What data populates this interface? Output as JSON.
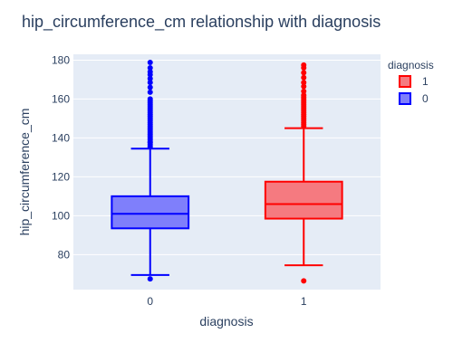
{
  "chart_data": {
    "type": "box",
    "title": "hip_circumference_cm relationship with diagnosis",
    "xlabel": "diagnosis",
    "ylabel": "hip_circumference_cm",
    "categories": [
      "0",
      "1"
    ],
    "ylim": [
      62,
      183
    ],
    "yticks": [
      80,
      100,
      120,
      140,
      160,
      180
    ],
    "grid": true,
    "legend": {
      "title": "diagnosis",
      "placement": "top-right",
      "entries": [
        "1",
        "0"
      ]
    },
    "series": [
      {
        "name": "0",
        "category": "0",
        "color": "#0000ff",
        "fill": "#7f7ffb",
        "min": 69.5,
        "q1": 93.5,
        "median": 101,
        "q3": 110,
        "max": 134.5,
        "outliers": [
          67.5,
          135.5,
          136.5,
          137.5,
          138,
          139,
          140,
          141,
          142,
          143,
          144,
          145,
          146,
          147,
          148,
          149,
          150,
          151,
          152,
          153,
          154,
          155,
          156,
          157,
          158,
          159,
          160,
          163.5,
          166,
          168.5,
          170.5,
          172.5,
          174,
          176,
          178.8
        ]
      },
      {
        "name": "1",
        "category": "1",
        "color": "#ff0000",
        "fill": "#f57a80",
        "min": 74.5,
        "q1": 98.5,
        "median": 106,
        "q3": 117.5,
        "max": 145,
        "outliers": [
          66.5,
          146,
          147,
          148,
          149,
          150,
          151,
          152,
          153,
          154,
          155,
          156,
          157,
          158,
          159,
          160,
          161,
          162,
          164,
          166.5,
          168.5,
          171,
          173.5,
          176,
          177.5
        ]
      }
    ]
  }
}
